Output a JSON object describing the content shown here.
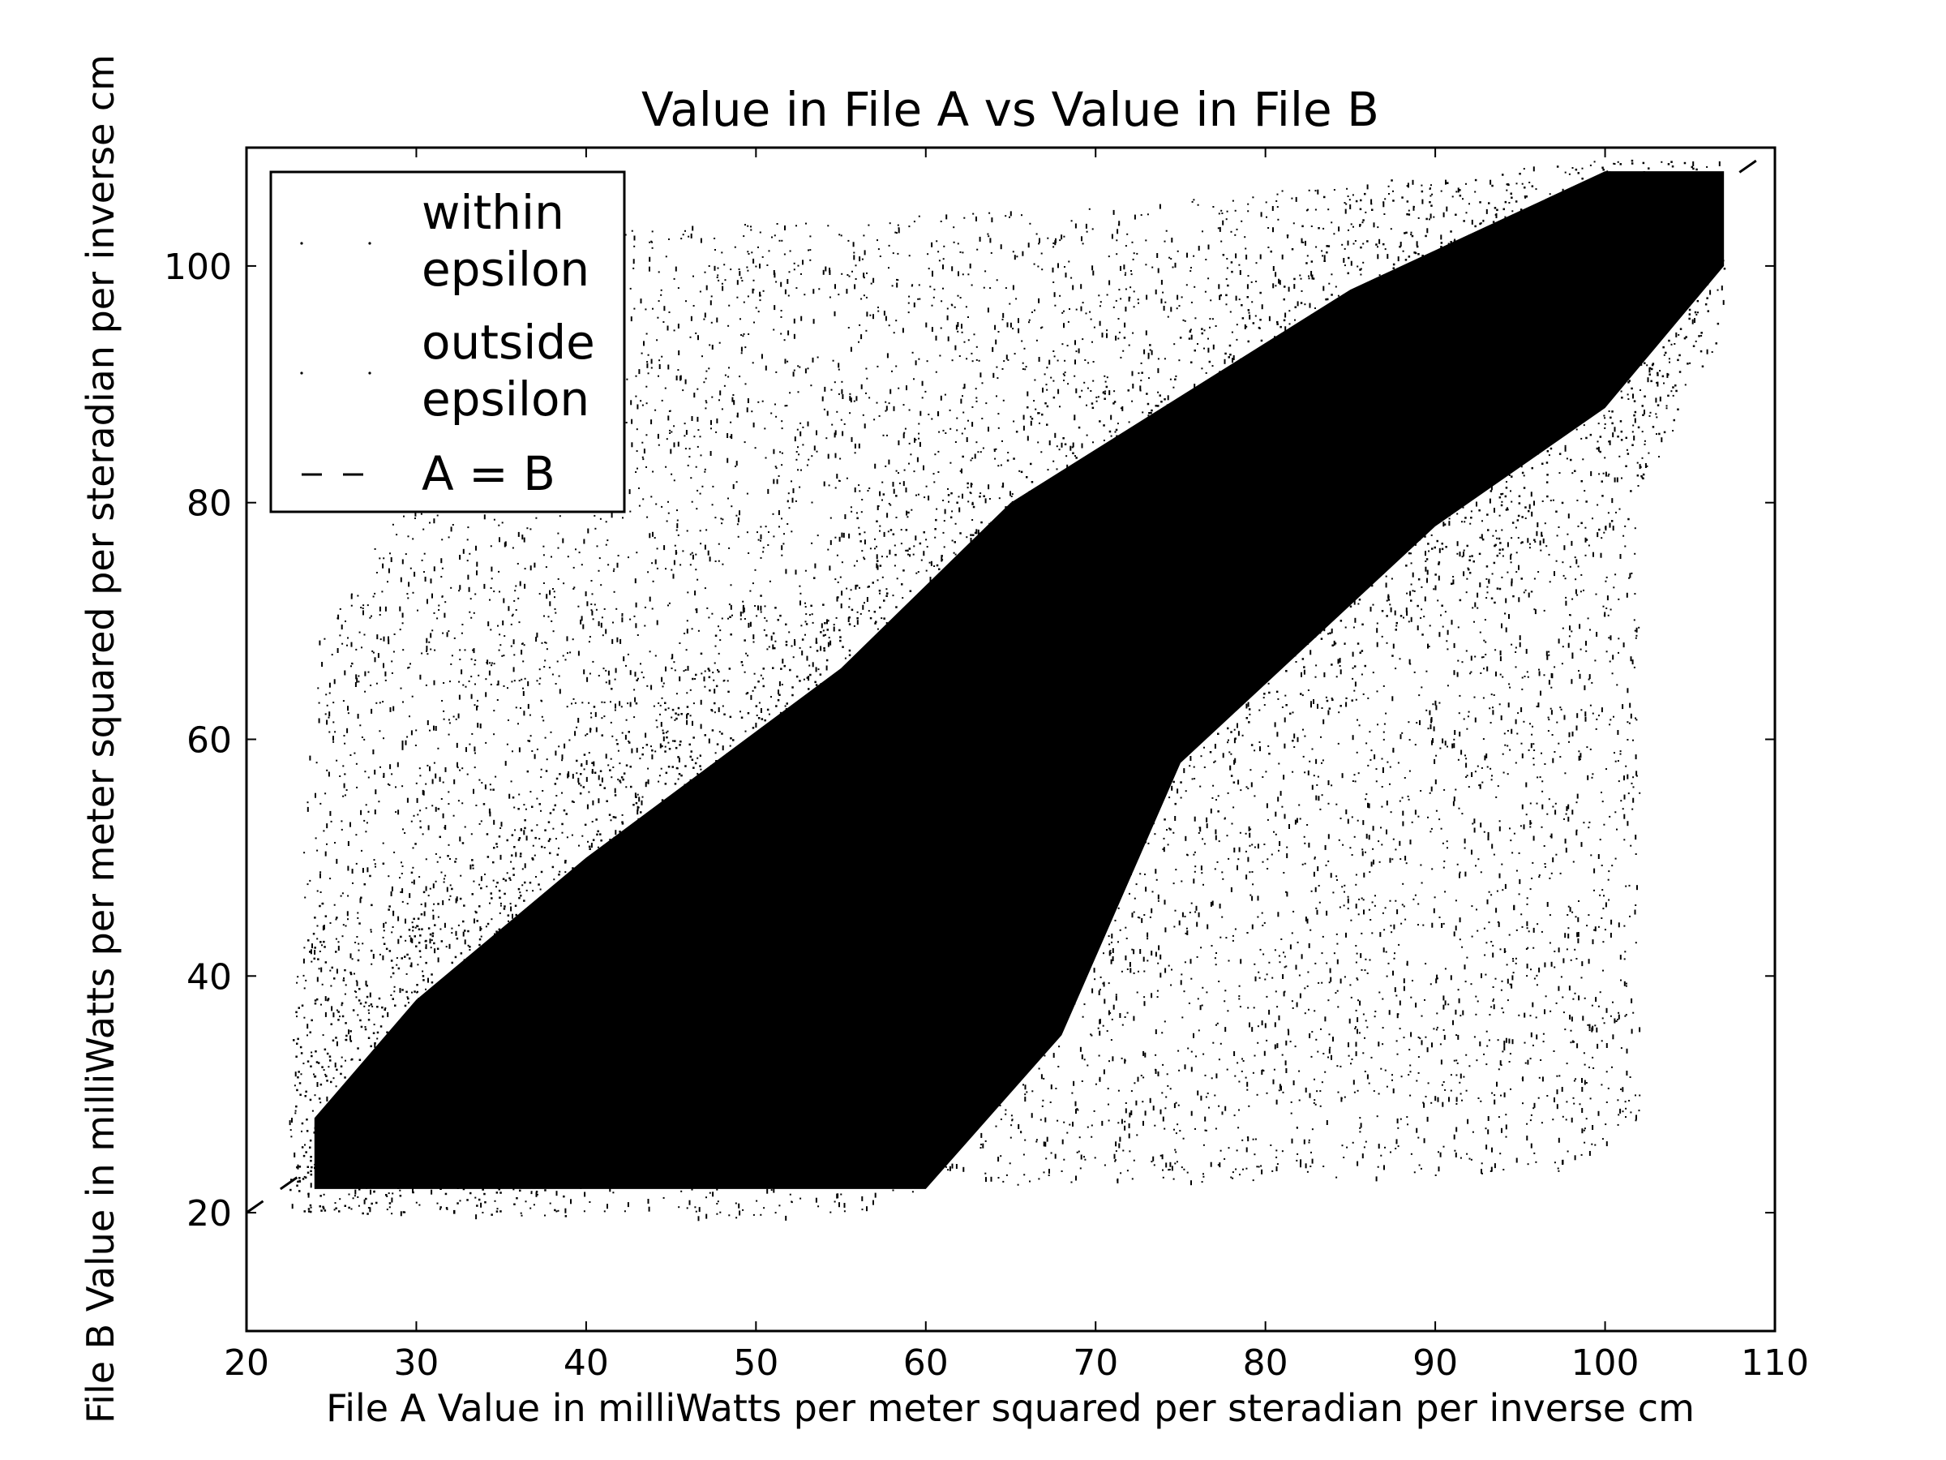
{
  "chart_data": {
    "type": "scatter",
    "title": "Value in File A vs Value in File B",
    "xlabel": "File A Value in milliWatts per meter squared per steradian per inverse cm",
    "ylabel": "File B Value in milliWatts per meter squared per steradian per inverse cm",
    "xlim": [
      20,
      110
    ],
    "ylim": [
      10,
      110
    ],
    "xticks": [
      "20",
      "30",
      "40",
      "50",
      "60",
      "70",
      "80",
      "90",
      "100",
      "110"
    ],
    "yticks": [
      "20",
      "40",
      "60",
      "80",
      "100"
    ],
    "grid": false,
    "legend": {
      "placement": "top-left",
      "entries": [
        {
          "label_lines": [
            "within",
            "epsilon"
          ],
          "marker": "dot"
        },
        {
          "label_lines": [
            "outside",
            "epsilon"
          ],
          "marker": "dot"
        },
        {
          "label_lines": [
            "A = B"
          ],
          "marker": "dashed-line"
        }
      ]
    },
    "series": [
      {
        "name": "within epsilon",
        "color": "#000000",
        "marker": "dot",
        "approx_dense_region": [
          [
            24,
            22
          ],
          [
            60,
            22
          ],
          [
            68,
            35
          ],
          [
            75,
            58
          ],
          [
            90,
            78
          ],
          [
            100,
            88
          ],
          [
            107,
            100
          ],
          [
            107,
            108
          ],
          [
            100,
            108
          ],
          [
            85,
            98
          ],
          [
            65,
            80
          ],
          [
            55,
            66
          ],
          [
            40,
            50
          ],
          [
            30,
            38
          ],
          [
            24,
            28
          ]
        ]
      },
      {
        "name": "outside epsilon",
        "color": "#000000",
        "marker": "dot",
        "approx_extent": [
          [
            22.5,
            20
          ],
          [
            55,
            19.5
          ],
          [
            60,
            22
          ],
          [
            98,
            23.5
          ],
          [
            102,
            28
          ],
          [
            102,
            80
          ],
          [
            107,
            95
          ],
          [
            107,
            109
          ],
          [
            100,
            109
          ],
          [
            70,
            105
          ],
          [
            40,
            103
          ],
          [
            30,
            101
          ],
          [
            28,
            78
          ],
          [
            24,
            68
          ],
          [
            22.5,
            30
          ]
        ]
      },
      {
        "name": "A = B",
        "color": "#000000",
        "line": "dashed",
        "x": [
          20,
          110
        ],
        "y": [
          20,
          110
        ]
      }
    ]
  }
}
